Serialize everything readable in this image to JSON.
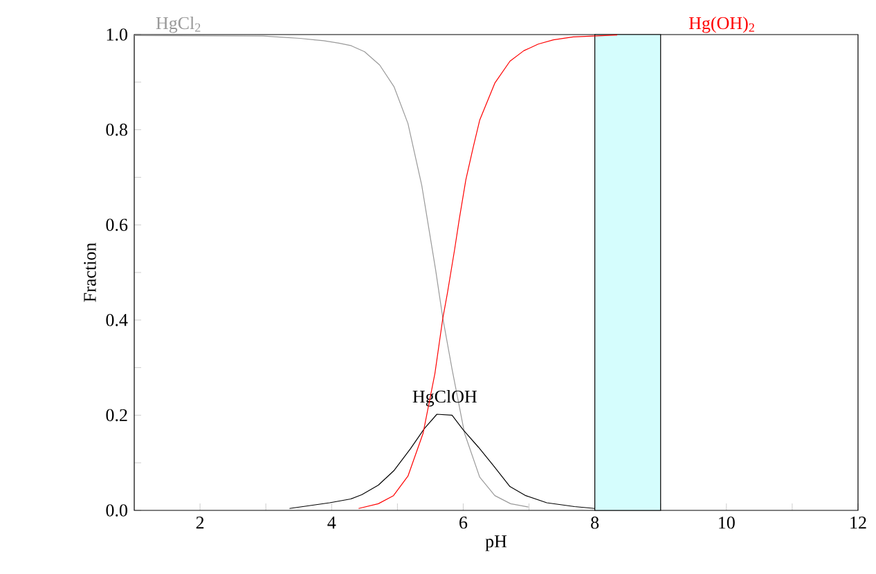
{
  "chart_data": {
    "type": "line",
    "xlabel": "pH",
    "ylabel": "Fraction",
    "xlim": [
      1,
      12
    ],
    "ylim": [
      0,
      1
    ],
    "xticks": [
      2,
      4,
      6,
      8,
      10,
      12
    ],
    "yticks": [
      {
        "value": 0,
        "label": "0.0"
      },
      0.2,
      0.4,
      0.6,
      0.8,
      {
        "value": 1,
        "label": "1.0"
      }
    ],
    "grid": false,
    "marker": "none",
    "line_style": "solid",
    "bands": [
      {
        "axis": "x",
        "from": 8,
        "to": 9,
        "color": "#d5fdfd"
      }
    ],
    "series": [
      {
        "name": "HgCl$_{2}$",
        "color": "#999999",
        "x": [
          1,
          2.96,
          3.3,
          3.52,
          3.74,
          3.88,
          4.11,
          4.29,
          4.5,
          4.73,
          4.95,
          5.16,
          5.37,
          5.58,
          5.69,
          5.83,
          6.02,
          6.25,
          6.48,
          6.72,
          6.99
        ],
        "values": [
          0.998,
          0.997,
          0.994,
          0.992,
          0.989,
          0.987,
          0.982,
          0.977,
          0.964,
          0.936,
          0.89,
          0.813,
          0.683,
          0.506,
          0.404,
          0.297,
          0.162,
          0.07,
          0.031,
          0.014,
          0.007
        ]
      },
      {
        "name": "HgClOH",
        "color": "#000000",
        "x": [
          3.36,
          3.97,
          4.29,
          4.46,
          4.71,
          4.95,
          5.2,
          5.41,
          5.6,
          5.83,
          6.0,
          6.23,
          6.46,
          6.71,
          6.95,
          7.27,
          7.69,
          8.0
        ],
        "values": [
          0.004,
          0.016,
          0.024,
          0.033,
          0.053,
          0.084,
          0.13,
          0.172,
          0.202,
          0.2,
          0.169,
          0.133,
          0.094,
          0.05,
          0.031,
          0.016,
          0.008,
          0.004
        ]
      },
      {
        "name": "Hg(OH)$_{2}$",
        "color": "#ff0000",
        "x": [
          4.41,
          4.71,
          4.94,
          5.16,
          5.39,
          5.57,
          5.69,
          5.76,
          5.87,
          5.94,
          6.04,
          6.15,
          6.25,
          6.48,
          6.71,
          6.92,
          7.14,
          7.37,
          7.67,
          8.34
        ],
        "values": [
          0.004,
          0.014,
          0.031,
          0.072,
          0.162,
          0.288,
          0.404,
          0.457,
          0.549,
          0.612,
          0.695,
          0.762,
          0.82,
          0.898,
          0.944,
          0.966,
          0.98,
          0.989,
          0.995,
          0.999
        ]
      }
    ]
  }
}
